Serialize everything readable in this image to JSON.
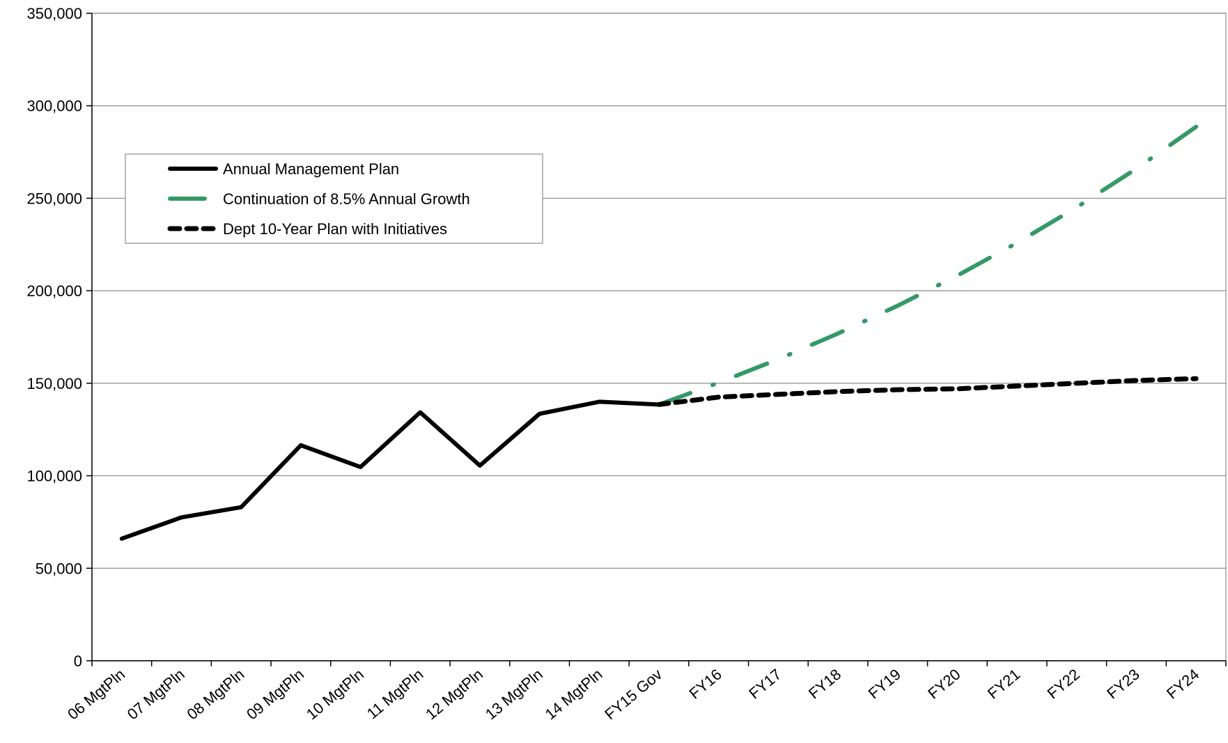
{
  "chart_data": {
    "type": "line",
    "categories": [
      "06 MgtPln",
      "07 MgtPln",
      "08 MgtPln",
      "09 MgtPln",
      "10 MgtPln",
      "11 MgtPln",
      "12 MgtPln",
      "13 MgtPln",
      "14 MgtPln",
      "FY15 Gov",
      "FY16",
      "FY17",
      "FY18",
      "FY19",
      "FY20",
      "FY21",
      "FY22",
      "FY23",
      "FY24"
    ],
    "series": [
      {
        "name": "Annual Management Plan",
        "color": "#000000",
        "style": "solid",
        "values": [
          66000,
          77500,
          83000,
          116500,
          104700,
          134300,
          105500,
          133500,
          140000,
          138500,
          null,
          null,
          null,
          null,
          null,
          null,
          null,
          null,
          null
        ]
      },
      {
        "name": "Continuation of 8.5% Annual Growth",
        "color": "#339966",
        "style": "dashdot",
        "values": [
          null,
          null,
          null,
          null,
          null,
          null,
          null,
          null,
          null,
          138500,
          150300,
          163000,
          176900,
          191900,
          208200,
          225900,
          245100,
          266000,
          288600
        ]
      },
      {
        "name": "Dept 10-Year Plan with Initiatives",
        "color": "#000000",
        "style": "dashed",
        "values": [
          null,
          null,
          null,
          null,
          null,
          null,
          null,
          null,
          null,
          138500,
          142500,
          144000,
          145500,
          146500,
          147000,
          148500,
          150000,
          151500,
          152500
        ]
      }
    ],
    "ylim": [
      0,
      350000
    ],
    "yticks": [
      0,
      {
        "value": 50000,
        "label": "50,000"
      },
      {
        "value": 100000,
        "label": "100,000"
      },
      {
        "value": 150000,
        "label": "150,000"
      },
      {
        "value": 200000,
        "label": "200,000"
      },
      {
        "value": 250000,
        "label": "250,000"
      },
      {
        "value": 300000,
        "label": "300,000"
      },
      {
        "value": 350000,
        "label": "350,000"
      }
    ],
    "grid": true,
    "legend": "upper left"
  }
}
